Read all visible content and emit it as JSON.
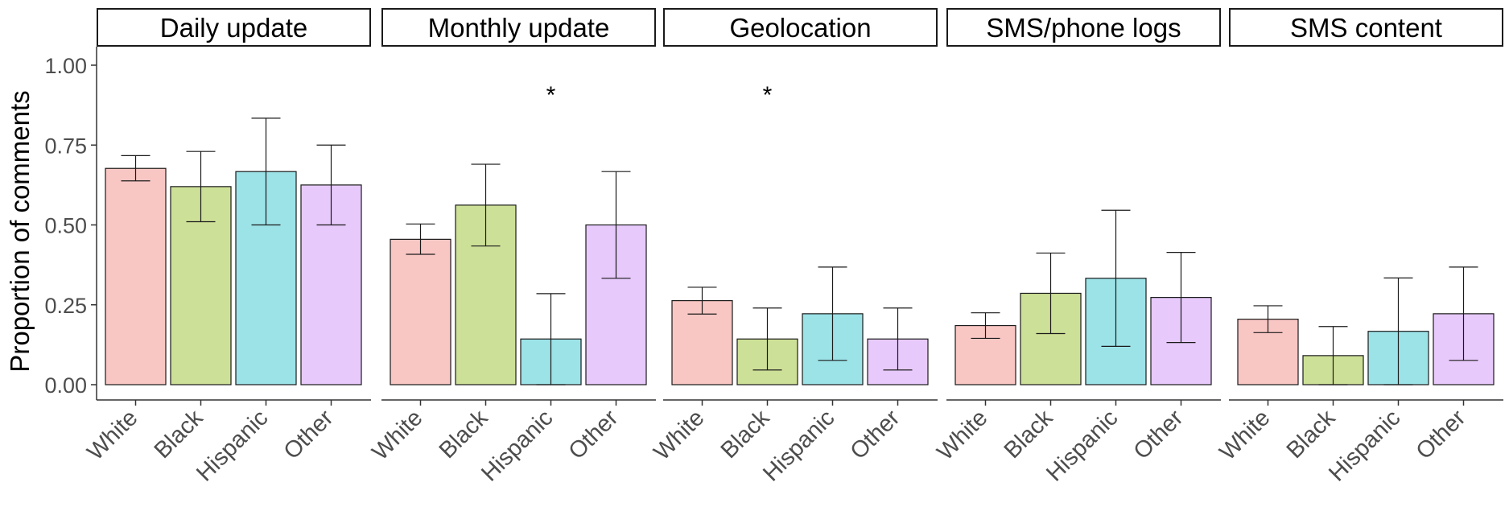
{
  "chart_data": {
    "type": "bar",
    "ylabel": "Proportion of comments",
    "xlabel": "",
    "ylim": [
      0,
      1.05
    ],
    "yticks": [
      "0.00",
      "0.25",
      "0.50",
      "0.75",
      "1.00"
    ],
    "ytick_values": [
      0,
      0.25,
      0.5,
      0.75,
      1.0
    ],
    "categories": [
      "White",
      "Black",
      "Hispanic",
      "Other"
    ],
    "colors": [
      "#f8c6c3",
      "#cde097",
      "#9ce3e8",
      "#e7c9fb"
    ],
    "grid": false,
    "significance_marker": "*",
    "panels": [
      {
        "title": "Daily update",
        "values": [
          0.677,
          0.62,
          0.667,
          0.625
        ],
        "ci_low": [
          0.638,
          0.51,
          0.5,
          0.5
        ],
        "ci_high": [
          0.717,
          0.73,
          0.834,
          0.75
        ],
        "significant": [
          false,
          false,
          false,
          false
        ]
      },
      {
        "title": "Monthly update",
        "values": [
          0.455,
          0.562,
          0.143,
          0.5
        ],
        "ci_low": [
          0.408,
          0.434,
          0.0,
          0.333
        ],
        "ci_high": [
          0.503,
          0.69,
          0.285,
          0.667
        ],
        "significant": [
          false,
          false,
          true,
          false
        ]
      },
      {
        "title": "Geolocation",
        "values": [
          0.263,
          0.143,
          0.222,
          0.143
        ],
        "ci_low": [
          0.221,
          0.046,
          0.076,
          0.046
        ],
        "ci_high": [
          0.305,
          0.24,
          0.368,
          0.24
        ],
        "significant": [
          false,
          true,
          false,
          false
        ]
      },
      {
        "title": "SMS/phone logs",
        "values": [
          0.185,
          0.286,
          0.333,
          0.273
        ],
        "ci_low": [
          0.145,
          0.16,
          0.12,
          0.132
        ],
        "ci_high": [
          0.225,
          0.412,
          0.546,
          0.414
        ],
        "significant": [
          false,
          false,
          false,
          false
        ]
      },
      {
        "title": "SMS content",
        "values": [
          0.205,
          0.091,
          0.167,
          0.222
        ],
        "ci_low": [
          0.163,
          0.0,
          0.0,
          0.076
        ],
        "ci_high": [
          0.247,
          0.182,
          0.334,
          0.368
        ],
        "significant": [
          false,
          false,
          false,
          false
        ]
      }
    ]
  }
}
